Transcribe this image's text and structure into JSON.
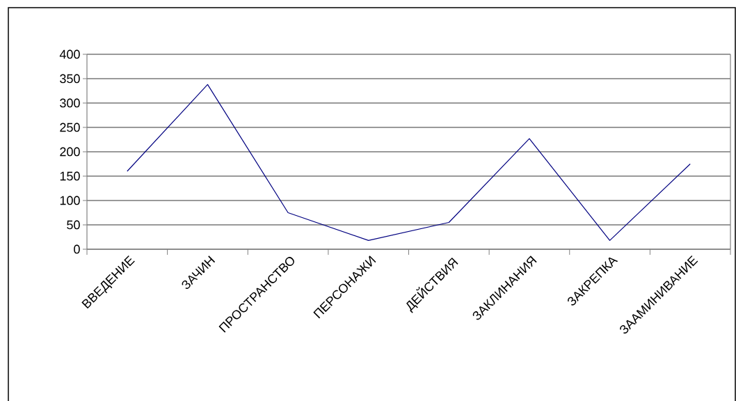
{
  "chart_data": {
    "type": "line",
    "categories": [
      "ВВЕДЕНИЕ",
      "ЗАЧИН",
      "ПРОСТРАНСТВО",
      "ПЕРСОНАЖИ",
      "ДЕЙСТВИЯ",
      "ЗАКЛИНАНИЯ",
      "ЗАКРЕПКА",
      "ЗААМИНИВАНИЕ"
    ],
    "series": [
      {
        "color": "#000080",
        "values": [
          160,
          338,
          75,
          18,
          55,
          227,
          18,
          175
        ]
      }
    ],
    "ylim": [
      0,
      400
    ],
    "yticks": [
      0,
      50,
      100,
      150,
      200,
      250,
      300,
      350,
      400
    ],
    "grid": "y",
    "marker": "none",
    "line_style": "solid"
  }
}
